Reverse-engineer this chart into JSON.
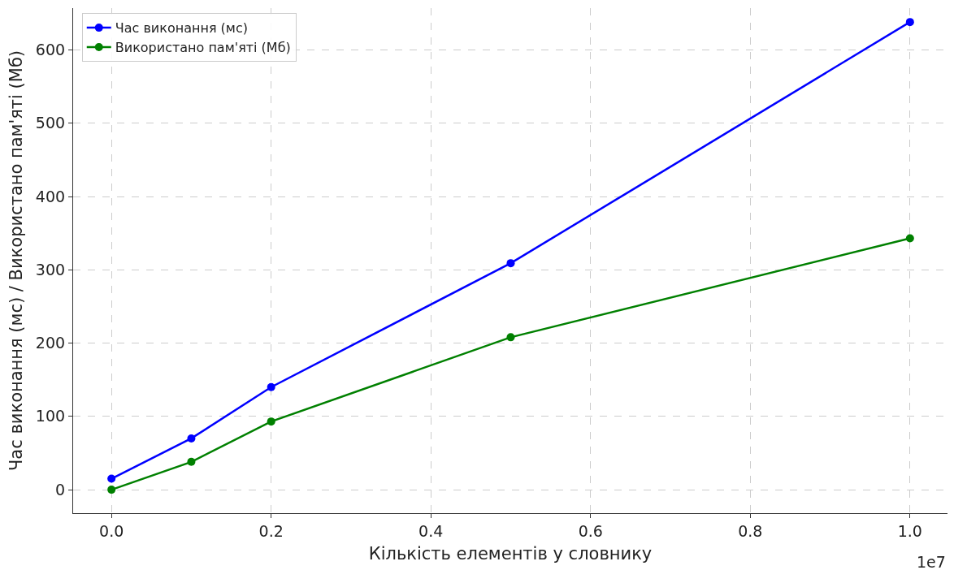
{
  "chart_data": {
    "type": "line",
    "xlabel": "Кількість елементів у словнику",
    "ylabel": "Час виконання (мс) / Використано пам'яті (Мб)",
    "x": [
      0,
      0.1,
      0.2,
      0.5,
      1.0
    ],
    "series": [
      {
        "name": "Час виконання (мс)",
        "color": "#0000ff",
        "values": [
          15,
          70,
          140,
          309,
          638
        ]
      },
      {
        "name": "Використано пам'яті (Мб)",
        "color": "#008000",
        "values": [
          0,
          38,
          93,
          208,
          343
        ]
      }
    ],
    "xlim": [
      -0.048,
      1.047
    ],
    "xticks": [
      {
        "value": 0,
        "label": "0.0"
      },
      {
        "value": 0.2,
        "label": "0.2"
      },
      {
        "value": 0.4,
        "label": "0.4"
      },
      {
        "value": 0.6,
        "label": "0.6"
      },
      {
        "value": 0.8,
        "label": "0.8"
      },
      {
        "value": 1.0,
        "label": "1.0"
      }
    ],
    "ylim": [
      -32,
      657
    ],
    "yticks": [
      0,
      100,
      200,
      300,
      400,
      500,
      600
    ],
    "annotations": [
      "1e7"
    ],
    "grid": true,
    "legend": "top left",
    "marker": "circle",
    "line_style": "solid"
  }
}
